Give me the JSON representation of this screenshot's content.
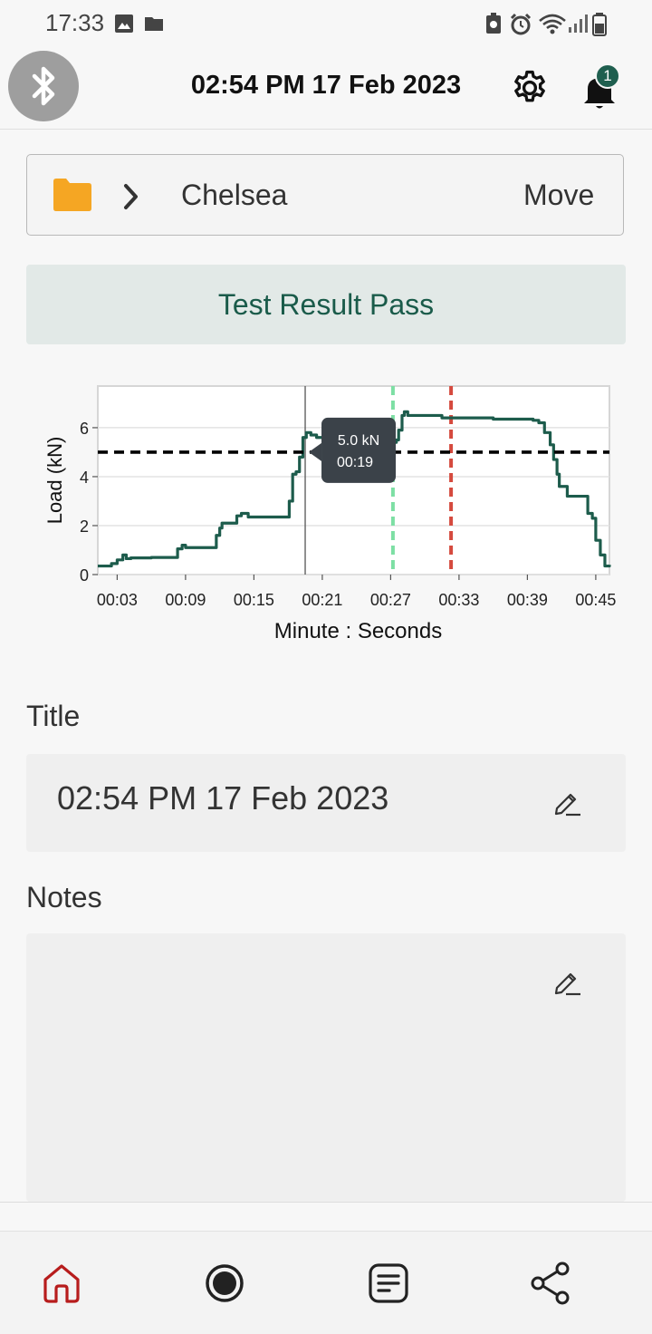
{
  "status_bar": {
    "time": "17:33"
  },
  "header": {
    "title": "02:54 PM 17 Feb 2023",
    "notification_count": "1"
  },
  "folder": {
    "name": "Chelsea",
    "move_label": "Move"
  },
  "result": {
    "label": "Test Result Pass"
  },
  "chart_data": {
    "type": "line",
    "ylabel": "Load (kN)",
    "xlabel": "Minute : Seconds",
    "y_ticks": [
      "0",
      "2",
      "4",
      "6"
    ],
    "x_ticks": [
      "00:03",
      "00:09",
      "00:15",
      "00:21",
      "00:27",
      "00:33",
      "00:39",
      "00:45"
    ],
    "xlim": [
      1.3,
      46.2
    ],
    "ylim": [
      0,
      7.7
    ],
    "grid": true,
    "series_color": "#1d5c4c",
    "x": [
      1.3,
      2.5,
      3.0,
      3.5,
      3.8,
      4.2,
      6.0,
      8.0,
      8.3,
      8.7,
      9.0,
      10.0,
      11.5,
      11.7,
      12.0,
      12.2,
      13.5,
      13.9,
      14.5,
      18.0,
      18.1,
      18.4,
      18.7,
      19.0,
      19.3,
      19.6,
      20.0,
      20.5,
      21.5,
      22.0,
      23.0,
      25.0,
      26.0,
      27.5,
      27.7,
      28.0,
      28.2,
      28.5,
      29.0,
      30.0,
      31.5,
      33.0,
      35.0,
      36.0,
      37.0,
      38.0,
      39.5,
      40.0,
      40.5,
      41.0,
      41.3,
      41.6,
      41.8,
      42.5,
      43.0,
      43.7,
      44.0,
      44.3,
      44.7,
      45.0,
      45.4,
      45.8,
      46.2
    ],
    "y": [
      0.35,
      0.45,
      0.6,
      0.8,
      0.65,
      0.68,
      0.7,
      0.7,
      1.05,
      1.2,
      1.1,
      1.1,
      1.1,
      1.6,
      1.9,
      2.1,
      2.4,
      2.5,
      2.35,
      2.35,
      3.0,
      4.1,
      4.2,
      4.8,
      5.6,
      5.8,
      5.7,
      5.6,
      5.55,
      5.55,
      5.4,
      5.4,
      5.4,
      5.5,
      5.9,
      6.5,
      6.65,
      6.5,
      6.5,
      6.5,
      6.4,
      6.4,
      6.4,
      6.35,
      6.35,
      6.35,
      6.3,
      6.2,
      5.8,
      5.3,
      4.7,
      4.1,
      3.6,
      3.2,
      3.2,
      3.2,
      3.2,
      2.5,
      2.3,
      1.4,
      0.8,
      0.35,
      0.4
    ],
    "threshold": {
      "value": 5.0,
      "color": "#000000"
    },
    "markers": [
      {
        "x": 27.2,
        "color": "#7ddfa4"
      },
      {
        "x": 32.3,
        "color": "#d54a3e"
      }
    ],
    "cursor": {
      "x": 19.5
    },
    "tooltip": {
      "load": "5.0 kN",
      "time": "00:19"
    }
  },
  "title_section": {
    "label": "Title",
    "value": "02:54 PM 17 Feb 2023"
  },
  "notes_section": {
    "label": "Notes",
    "value": ""
  },
  "bottom_nav": {
    "active_color": "#b71c1c"
  }
}
